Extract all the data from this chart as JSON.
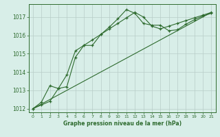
{
  "xlabel": "Graphe pression niveau de la mer (hPa)",
  "xlim": [
    -0.5,
    21.5
  ],
  "ylim": [
    1011.8,
    1017.7
  ],
  "yticks": [
    1012,
    1013,
    1014,
    1015,
    1016,
    1017
  ],
  "xticks": [
    0,
    1,
    2,
    3,
    4,
    5,
    6,
    7,
    8,
    9,
    10,
    11,
    12,
    13,
    14,
    15,
    16,
    17,
    18,
    19,
    20,
    21
  ],
  "background_color": "#d8eee8",
  "grid_color": "#b8ccc8",
  "line_color": "#2d6a2d",
  "series1_x": [
    0,
    1,
    2,
    3,
    4,
    5,
    6,
    7,
    8,
    9,
    10,
    11,
    12,
    13,
    14,
    15,
    16,
    17,
    18,
    19,
    20,
    21
  ],
  "series1_y": [
    1012.0,
    1012.2,
    1012.4,
    1013.1,
    1013.2,
    1014.8,
    1015.45,
    1015.45,
    1016.05,
    1016.45,
    1016.9,
    1017.4,
    1017.2,
    1016.65,
    1016.55,
    1016.55,
    1016.25,
    1016.3,
    1016.6,
    1016.85,
    1017.05,
    1017.2
  ],
  "series2_x": [
    0,
    1,
    2,
    3,
    4,
    5,
    6,
    7,
    8,
    9,
    10,
    11,
    12,
    13,
    14,
    15,
    16,
    17,
    18,
    19,
    20,
    21
  ],
  "series2_y": [
    1012.0,
    1012.35,
    1013.25,
    1013.1,
    1013.85,
    1015.15,
    1015.45,
    1015.75,
    1016.05,
    1016.35,
    1016.65,
    1016.95,
    1017.25,
    1017.0,
    1016.5,
    1016.35,
    1016.5,
    1016.65,
    1016.8,
    1016.95,
    1017.1,
    1017.25
  ],
  "ref_line_x": [
    0,
    21
  ],
  "ref_line_y": [
    1012.0,
    1017.25
  ]
}
